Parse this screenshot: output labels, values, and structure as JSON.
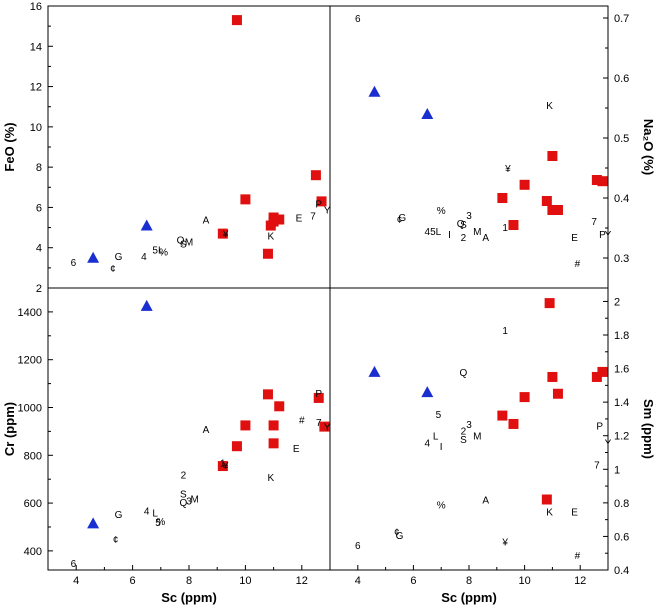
{
  "chart_data": [
    {
      "type": "scatter",
      "panel": "top-left",
      "xlabel": "",
      "ylabel": "FeO (%)",
      "yaxis_side": "left",
      "xlim": [
        3,
        13
      ],
      "ylim": [
        2,
        16
      ],
      "yticks": [
        2,
        4,
        6,
        8,
        10,
        12,
        14,
        16
      ],
      "xticks": [],
      "series": [
        {
          "marker": "triangle",
          "color": "#1a2fd0",
          "points": [
            [
              4.6,
              3.5
            ],
            [
              6.5,
              5.1
            ]
          ]
        },
        {
          "marker": "square",
          "color": "#e01010",
          "points": [
            [
              9.2,
              4.7
            ],
            [
              9.7,
              15.3
            ],
            [
              10.0,
              6.4
            ],
            [
              10.8,
              3.7
            ],
            [
              10.9,
              5.1
            ],
            [
              11.0,
              5.5
            ],
            [
              11.0,
              5.3
            ],
            [
              11.2,
              5.4
            ],
            [
              12.5,
              7.6
            ],
            [
              12.7,
              6.3
            ]
          ]
        },
        {
          "marker": "label",
          "points": [
            [
              3.9,
              3.3,
              "6"
            ],
            [
              5.3,
              3.0,
              "¢"
            ],
            [
              5.5,
              3.6,
              "G"
            ],
            [
              6.4,
              3.6,
              "4"
            ],
            [
              6.9,
              3.9,
              "5L"
            ],
            [
              7.1,
              3.8,
              "%"
            ],
            [
              7.7,
              4.4,
              "Q"
            ],
            [
              7.8,
              4.2,
              "S"
            ],
            [
              8.0,
              4.3,
              "M"
            ],
            [
              9.3,
              4.7,
              "¥"
            ],
            [
              8.6,
              5.4,
              "A"
            ],
            [
              10.9,
              4.6,
              "K"
            ],
            [
              11.9,
              5.5,
              "E"
            ],
            [
              12.4,
              5.6,
              "7"
            ],
            [
              12.6,
              6.2,
              "P"
            ],
            [
              12.9,
              5.9,
              "Y"
            ]
          ]
        }
      ]
    },
    {
      "type": "scatter",
      "panel": "top-right",
      "xlabel": "",
      "ylabel": "Na₂O (%)",
      "yaxis_side": "right",
      "xlim": [
        3,
        13
      ],
      "ylim": [
        0.25,
        0.72
      ],
      "yticks": [
        0.3,
        0.4,
        0.5,
        0.6,
        0.7
      ],
      "xticks": [],
      "series": [
        {
          "marker": "triangle",
          "color": "#1a2fd0",
          "points": [
            [
              4.6,
              0.577
            ],
            [
              6.5,
              0.54
            ]
          ]
        },
        {
          "marker": "square",
          "color": "#e01010",
          "points": [
            [
              9.2,
              0.4
            ],
            [
              9.6,
              0.355
            ],
            [
              10.0,
              0.422
            ],
            [
              10.8,
              0.395
            ],
            [
              11.0,
              0.47
            ],
            [
              11.0,
              0.38
            ],
            [
              11.2,
              0.38
            ],
            [
              12.6,
              0.43
            ],
            [
              12.8,
              0.428
            ]
          ]
        },
        {
          "marker": "label",
          "points": [
            [
              4.0,
              0.7,
              "6"
            ],
            [
              5.5,
              0.365,
              "¢"
            ],
            [
              5.6,
              0.368,
              "G"
            ],
            [
              6.5,
              0.345,
              "4"
            ],
            [
              6.8,
              0.345,
              "5L"
            ],
            [
              7.0,
              0.38,
              "%"
            ],
            [
              7.3,
              0.34,
              "I"
            ],
            [
              7.7,
              0.358,
              "Q"
            ],
            [
              7.8,
              0.357,
              "S"
            ],
            [
              7.8,
              0.335,
              "2"
            ],
            [
              8.0,
              0.372,
              "3"
            ],
            [
              8.3,
              0.345,
              "M"
            ],
            [
              8.6,
              0.335,
              "A"
            ],
            [
              9.3,
              0.352,
              "1"
            ],
            [
              9.4,
              0.45,
              "¥"
            ],
            [
              10.9,
              0.555,
              "K"
            ],
            [
              11.8,
              0.335,
              "E"
            ],
            [
              11.9,
              0.292,
              "#"
            ],
            [
              12.5,
              0.362,
              "7"
            ],
            [
              12.8,
              0.34,
              "P"
            ],
            [
              13.0,
              0.34,
              "Y"
            ]
          ]
        }
      ]
    },
    {
      "type": "scatter",
      "panel": "bottom-left",
      "xlabel": "Sc (ppm)",
      "ylabel": "Cr (ppm)",
      "yaxis_side": "left",
      "xlim": [
        3,
        13
      ],
      "ylim": [
        320,
        1500
      ],
      "yticks": [
        400,
        600,
        800,
        1000,
        1200,
        1400
      ],
      "xticks": [
        4,
        6,
        8,
        10,
        12
      ],
      "series": [
        {
          "marker": "triangle",
          "color": "#1a2fd0",
          "points": [
            [
              4.6,
              515
            ],
            [
              6.5,
              1425
            ]
          ]
        },
        {
          "marker": "square",
          "color": "#e01010",
          "points": [
            [
              9.2,
              755
            ],
            [
              9.7,
              838
            ],
            [
              10.0,
              925
            ],
            [
              10.8,
              1055
            ],
            [
              11.0,
              850
            ],
            [
              11.0,
              925
            ],
            [
              11.2,
              1005
            ],
            [
              12.6,
              1040
            ],
            [
              12.8,
              920
            ]
          ]
        },
        {
          "marker": "label",
          "points": [
            [
              3.9,
              350,
              "6"
            ],
            [
              5.4,
              450,
              "¢"
            ],
            [
              5.5,
              555,
              "G"
            ],
            [
              6.5,
              570,
              "4"
            ],
            [
              6.8,
              560,
              "L"
            ],
            [
              6.9,
              520,
              "5"
            ],
            [
              7.0,
              525,
              "%"
            ],
            [
              7.8,
              720,
              "2"
            ],
            [
              7.8,
              640,
              "S"
            ],
            [
              7.8,
              605,
              "Q"
            ],
            [
              8.0,
              610,
              "3"
            ],
            [
              8.2,
              620,
              "M"
            ],
            [
              8.6,
              910,
              "A"
            ],
            [
              9.2,
              770,
              "1"
            ],
            [
              9.3,
              760,
              "¥"
            ],
            [
              10.9,
              710,
              "K"
            ],
            [
              11.8,
              830,
              "E"
            ],
            [
              12.0,
              950,
              "#"
            ],
            [
              12.6,
              1060,
              "P"
            ],
            [
              12.6,
              940,
              "7"
            ],
            [
              12.9,
              920,
              "Y"
            ]
          ]
        }
      ]
    },
    {
      "type": "scatter",
      "panel": "bottom-right",
      "xlabel": "Sc (ppm)",
      "ylabel": "Sm (ppm)",
      "yaxis_side": "right",
      "xlim": [
        3,
        13
      ],
      "ylim": [
        0.4,
        2.08
      ],
      "yticks": [
        0.4,
        0.6,
        0.8,
        1.0,
        1.2,
        1.4,
        1.6,
        1.8,
        2.0
      ],
      "xticks": [
        4,
        6,
        8,
        10,
        12
      ],
      "series": [
        {
          "marker": "triangle",
          "color": "#1a2fd0",
          "points": [
            [
              4.6,
              1.58
            ],
            [
              6.5,
              1.46
            ]
          ]
        },
        {
          "marker": "square",
          "color": "#e01010",
          "points": [
            [
              9.2,
              1.32
            ],
            [
              9.6,
              1.27
            ],
            [
              10.0,
              1.43
            ],
            [
              10.8,
              0.82
            ],
            [
              10.9,
              1.99
            ],
            [
              11.0,
              1.55
            ],
            [
              11.2,
              1.45
            ],
            [
              12.6,
              1.55
            ],
            [
              12.8,
              1.58
            ]
          ]
        },
        {
          "marker": "label",
          "points": [
            [
              4.0,
              0.55,
              "6"
            ],
            [
              5.4,
              0.63,
              "¢"
            ],
            [
              5.5,
              0.61,
              "G"
            ],
            [
              6.5,
              1.16,
              "4"
            ],
            [
              6.8,
              1.2,
              "L"
            ],
            [
              7.0,
              1.14,
              "I"
            ],
            [
              6.9,
              1.33,
              "5"
            ],
            [
              7.0,
              0.79,
              "%"
            ],
            [
              7.8,
              1.23,
              "2"
            ],
            [
              7.8,
              1.18,
              "S"
            ],
            [
              8.0,
              1.27,
              "3"
            ],
            [
              8.3,
              1.2,
              "M"
            ],
            [
              8.6,
              0.82,
              "A"
            ],
            [
              7.8,
              1.58,
              "Q"
            ],
            [
              9.3,
              1.83,
              "1"
            ],
            [
              9.3,
              0.57,
              "¥"
            ],
            [
              10.9,
              0.75,
              "K"
            ],
            [
              11.8,
              0.75,
              "E"
            ],
            [
              11.9,
              0.49,
              "#"
            ],
            [
              12.6,
              1.03,
              "7"
            ],
            [
              12.7,
              1.26,
              "P"
            ],
            [
              13.0,
              1.16,
              "Y"
            ]
          ]
        }
      ]
    }
  ]
}
